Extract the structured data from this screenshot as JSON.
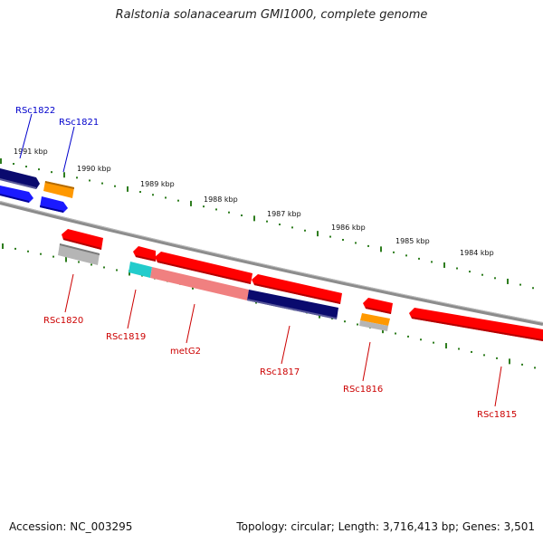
{
  "title": "Ralstonia solanacearum GMI1000, complete genome",
  "footer": {
    "accession": "Accession: NC_003295",
    "stats": "Topology: circular; Length: 3,716,413 bp; Genes: 3,501"
  },
  "colors": {
    "backbone": "#8c8c8c",
    "tick": "#2e7d1e",
    "label_forward": "#0000cc",
    "label_reverse": "#cc0000",
    "gene_red": "#ff0000",
    "gene_navy": "#0a0a6e",
    "gene_blue": "#1a1aff",
    "gene_orange": "#ff9900",
    "gene_gray": "#b5b5b5",
    "gene_cyan": "#22cccc",
    "gene_pink": "#f08080"
  },
  "kbp_labels": [
    "1991 kbp",
    "1990 kbp",
    "1989 kbp",
    "1988 kbp",
    "1987 kbp",
    "1986 kbp",
    "1985 kbp",
    "1984 kbp"
  ],
  "gene_labels": {
    "forward": [
      "RSc1822",
      "RSc1821"
    ],
    "reverse": [
      "RSc1820",
      "RSc1819",
      "metG2",
      "RSc1817",
      "RSc1816",
      "RSc1815"
    ]
  }
}
